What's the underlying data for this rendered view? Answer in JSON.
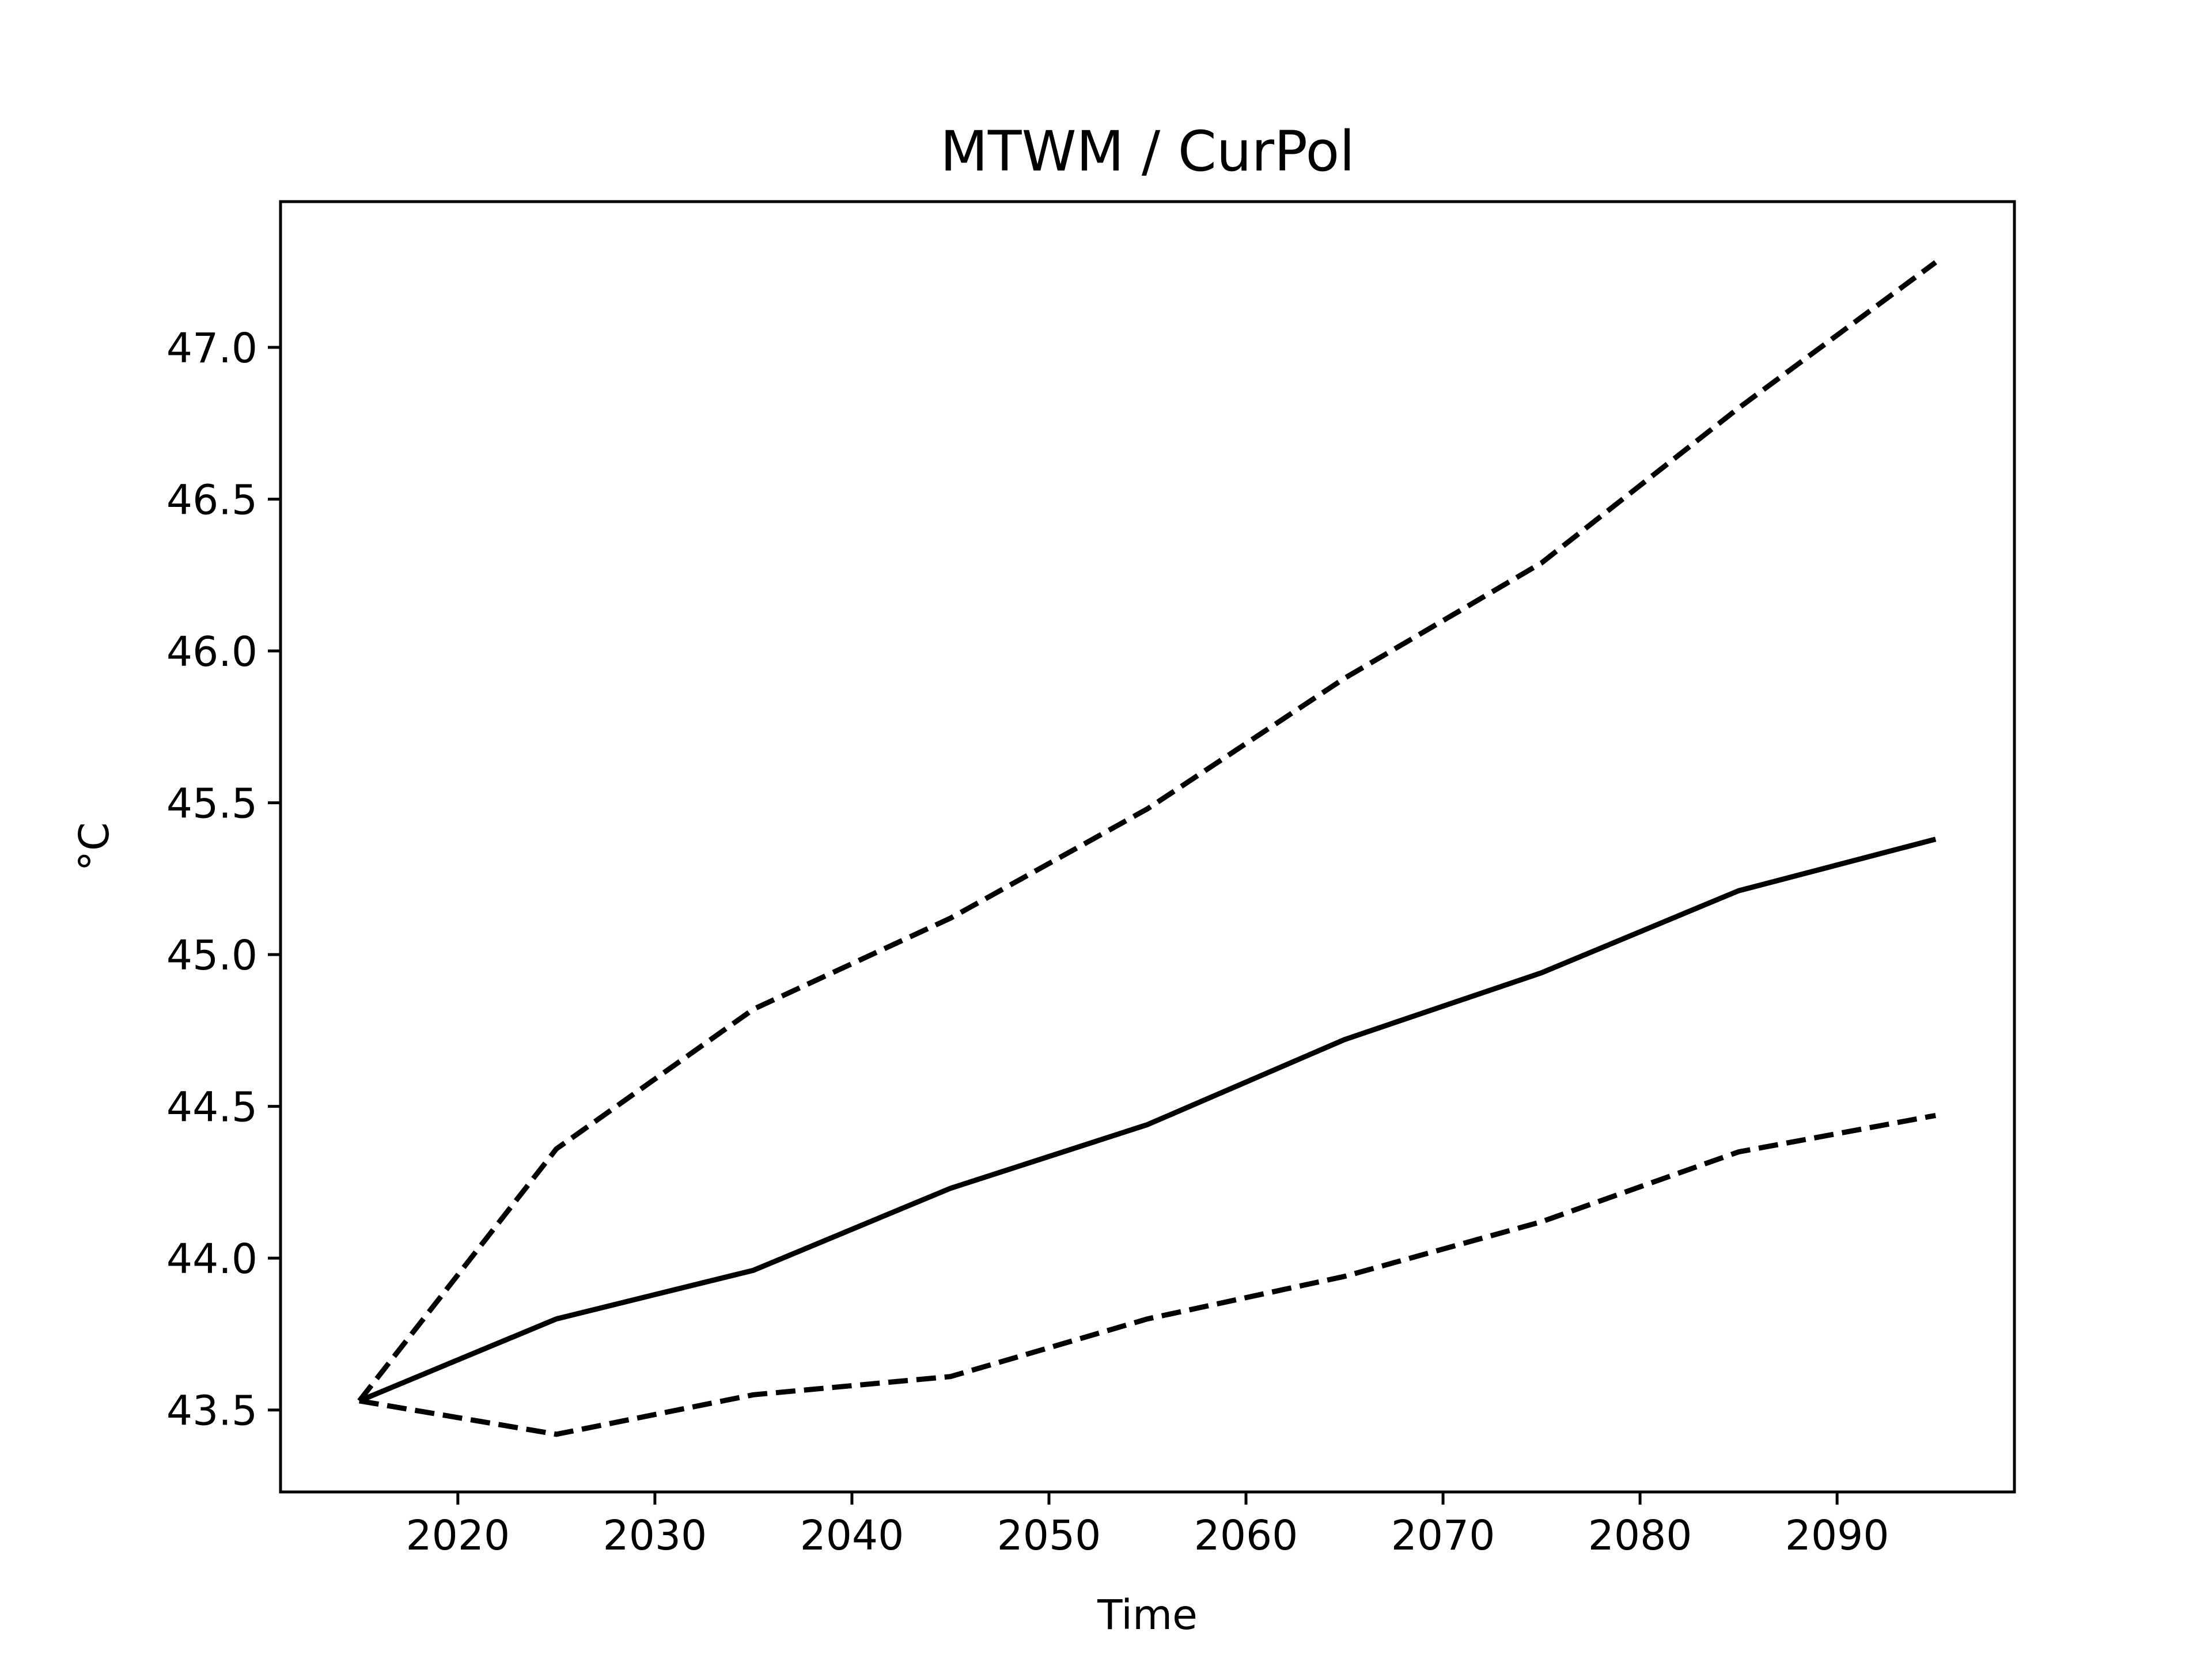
{
  "chart_data": {
    "type": "line",
    "title": "MTWM / CurPol",
    "xlabel": "Time",
    "ylabel": "°C",
    "xlim": [
      2011,
      2099
    ],
    "ylim": [
      43.23,
      47.48
    ],
    "xticks": [
      2020,
      2030,
      2040,
      2050,
      2060,
      2070,
      2080,
      2090
    ],
    "yticks": [
      43.5,
      44.0,
      44.5,
      45.0,
      45.5,
      46.0,
      46.5,
      47.0
    ],
    "xtick_labels": [
      "2020",
      "2030",
      "2040",
      "2050",
      "2060",
      "2070",
      "2080",
      "2090"
    ],
    "ytick_labels": [
      "43.5",
      "44.0",
      "44.5",
      "45.0",
      "45.5",
      "46.0",
      "46.5",
      "47.0"
    ],
    "grid": false,
    "legend": "none",
    "x": [
      2015,
      2025,
      2035,
      2045,
      2055,
      2065,
      2075,
      2085,
      2095
    ],
    "series": [
      {
        "style": "solid",
        "color": "#000000",
        "values": [
          43.53,
          43.8,
          43.96,
          44.23,
          44.44,
          44.72,
          44.94,
          45.21,
          45.38
        ]
      },
      {
        "style": "dashed",
        "color": "#000000",
        "values": [
          43.53,
          44.36,
          44.82,
          45.12,
          45.48,
          45.91,
          46.29,
          46.8,
          47.28
        ]
      },
      {
        "style": "dashed",
        "color": "#000000",
        "values": [
          43.53,
          43.42,
          43.55,
          43.61,
          43.8,
          43.94,
          44.12,
          44.35,
          44.47
        ]
      }
    ]
  }
}
